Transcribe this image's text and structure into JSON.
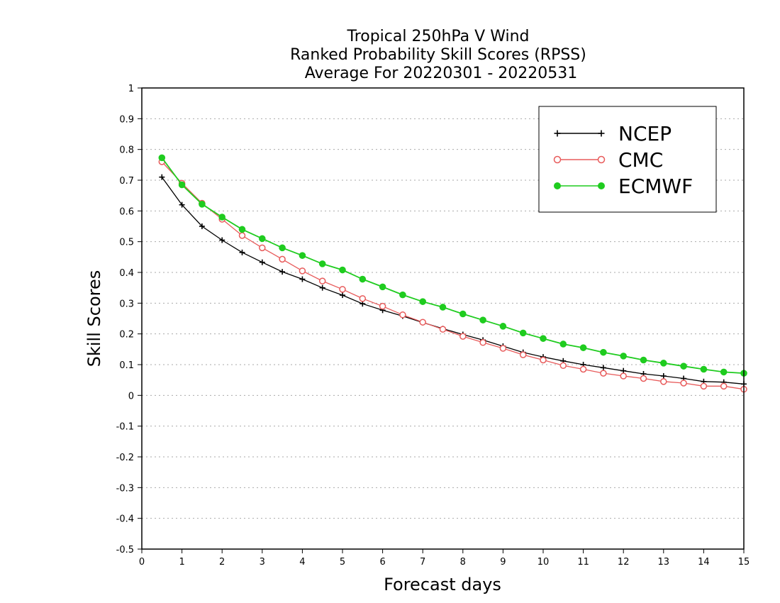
{
  "chart_data": {
    "type": "line",
    "title_lines": [
      "Tropical 250hPa V Wind",
      "Ranked Probability Skill Scores (RPSS)",
      "Average For 20220301 - 20220531"
    ],
    "xlabel": "Forecast days",
    "ylabel": "Skill Scores",
    "xlim": [
      0,
      15
    ],
    "ylim": [
      -0.5,
      1
    ],
    "xticks": [
      "0",
      "1",
      "2",
      "3",
      "4",
      "5",
      "6",
      "7",
      "8",
      "9",
      "10",
      "11",
      "12",
      "13",
      "14",
      "15"
    ],
    "yticks": [
      "-0.5",
      "-0.4",
      "-0.3",
      "-0.2",
      "-0.1",
      "0",
      "0.1",
      "0.2",
      "0.3",
      "0.4",
      "0.5",
      "0.6",
      "0.7",
      "0.8",
      "0.9",
      "1"
    ],
    "grid": "horizontal dotted",
    "legend_position": "top-right",
    "x": [
      0.5,
      1,
      1.5,
      2,
      2.5,
      3,
      3.5,
      4,
      4.5,
      5,
      5.5,
      6,
      6.5,
      7,
      7.5,
      8,
      8.5,
      9,
      9.5,
      10,
      10.5,
      11,
      11.5,
      12,
      12.5,
      13,
      13.5,
      14,
      14.5,
      15
    ],
    "series": [
      {
        "name": "NCEP",
        "color": "#000000",
        "marker": "plus",
        "values": [
          0.71,
          0.62,
          0.55,
          0.505,
          0.465,
          0.433,
          0.402,
          0.378,
          0.35,
          0.326,
          0.298,
          0.277,
          0.258,
          0.237,
          0.217,
          0.198,
          0.18,
          0.16,
          0.14,
          0.125,
          0.112,
          0.1,
          0.09,
          0.08,
          0.07,
          0.063,
          0.055,
          0.045,
          0.043,
          0.037
        ]
      },
      {
        "name": "CMC",
        "color": "#e85b5b",
        "marker": "open-circle",
        "values": [
          0.76,
          0.69,
          0.625,
          0.573,
          0.52,
          0.48,
          0.443,
          0.405,
          0.372,
          0.345,
          0.315,
          0.29,
          0.262,
          0.238,
          0.215,
          0.192,
          0.172,
          0.153,
          0.132,
          0.115,
          0.097,
          0.085,
          0.072,
          0.063,
          0.055,
          0.045,
          0.04,
          0.03,
          0.03,
          0.02
        ]
      },
      {
        "name": "ECMWF",
        "color": "#1fcc1f",
        "marker": "filled-circle",
        "values": [
          0.773,
          0.685,
          0.622,
          0.58,
          0.54,
          0.51,
          0.48,
          0.455,
          0.428,
          0.408,
          0.378,
          0.353,
          0.327,
          0.305,
          0.287,
          0.265,
          0.245,
          0.225,
          0.203,
          0.185,
          0.167,
          0.155,
          0.14,
          0.128,
          0.115,
          0.105,
          0.095,
          0.085,
          0.076,
          0.072
        ]
      }
    ]
  }
}
